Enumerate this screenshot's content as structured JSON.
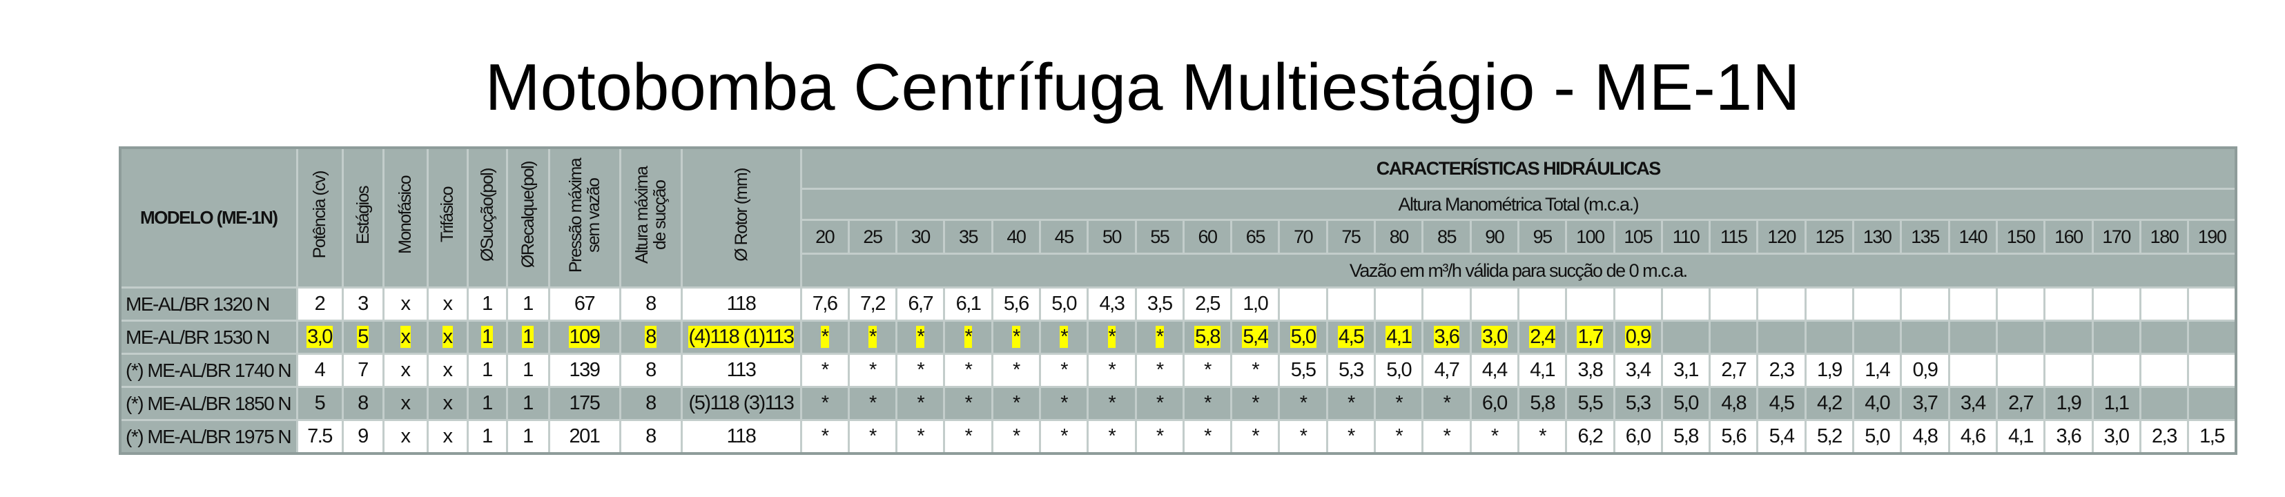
{
  "title": "Motobomba Centrífuga Multiestágio - ME-1N",
  "header": {
    "model": "MODELO (ME-1N)",
    "params": [
      "Potência (cv)",
      "Estágios",
      "Monofásico",
      "Trifásico",
      "ØSucção(pol)",
      "ØRecalque(pol)",
      "Pressão máxima sem vazão",
      "Altura máxima de sucção",
      "Ø Rotor (mm)"
    ],
    "section_title": "CARACTERÍSTICAS HIDRÁULICAS",
    "head_label": "Altura Manométrica Total (m.c.a.)",
    "flow_label": "Vazão em m³/h válida para sucção de 0 m.c.a.",
    "heads": [
      "20",
      "25",
      "30",
      "35",
      "40",
      "45",
      "50",
      "55",
      "60",
      "65",
      "70",
      "75",
      "80",
      "85",
      "90",
      "95",
      "100",
      "105",
      "110",
      "115",
      "120",
      "125",
      "130",
      "135",
      "140",
      "150",
      "160",
      "170",
      "180",
      "190"
    ]
  },
  "rows": [
    {
      "model": "ME-AL/BR 1320 N",
      "highlighted": false,
      "params": [
        "2",
        "3",
        "x",
        "x",
        "1",
        "1",
        "67",
        "8",
        "118"
      ],
      "flows": [
        "7,6",
        "7,2",
        "6,7",
        "6,1",
        "5,6",
        "5,0",
        "4,3",
        "3,5",
        "2,5",
        "1,0",
        "",
        "",
        "",
        "",
        "",
        "",
        "",
        "",
        "",
        "",
        "",
        "",
        "",
        "",
        "",
        "",
        "",
        "",
        "",
        ""
      ]
    },
    {
      "model": "ME-AL/BR 1530 N",
      "highlighted": true,
      "params": [
        "3,0",
        "5",
        "x",
        "x",
        "1",
        "1",
        "109",
        "8",
        "(4)118 (1)113"
      ],
      "flows": [
        "*",
        "*",
        "*",
        "*",
        "*",
        "*",
        "*",
        "*",
        "5,8",
        "5,4",
        "5,0",
        "4,5",
        "4,1",
        "3,6",
        "3,0",
        "2,4",
        "1,7",
        "0,9",
        "",
        "",
        "",
        "",
        "",
        "",
        "",
        "",
        "",
        "",
        "",
        ""
      ]
    },
    {
      "model": "(*) ME-AL/BR 1740 N",
      "highlighted": false,
      "params": [
        "4",
        "7",
        "x",
        "x",
        "1",
        "1",
        "139",
        "8",
        "113"
      ],
      "flows": [
        "*",
        "*",
        "*",
        "*",
        "*",
        "*",
        "*",
        "*",
        "*",
        "*",
        "5,5",
        "5,3",
        "5,0",
        "4,7",
        "4,4",
        "4,1",
        "3,8",
        "3,4",
        "3,1",
        "2,7",
        "2,3",
        "1,9",
        "1,4",
        "0,9",
        "",
        "",
        "",
        "",
        "",
        ""
      ]
    },
    {
      "model": "(*) ME-AL/BR 1850 N",
      "highlighted": false,
      "params": [
        "5",
        "8",
        "x",
        "x",
        "1",
        "1",
        "175",
        "8",
        "(5)118 (3)113"
      ],
      "flows": [
        "*",
        "*",
        "*",
        "*",
        "*",
        "*",
        "*",
        "*",
        "*",
        "*",
        "*",
        "*",
        "*",
        "*",
        "6,0",
        "5,8",
        "5,5",
        "5,3",
        "5,0",
        "4,8",
        "4,5",
        "4,2",
        "4,0",
        "3,7",
        "3,4",
        "2,7",
        "1,9",
        "1,1",
        "",
        ""
      ]
    },
    {
      "model": "(*) ME-AL/BR 1975 N",
      "highlighted": false,
      "params": [
        "7.5",
        "9",
        "x",
        "x",
        "1",
        "1",
        "201",
        "8",
        "118"
      ],
      "flows": [
        "*",
        "*",
        "*",
        "*",
        "*",
        "*",
        "*",
        "*",
        "*",
        "*",
        "*",
        "*",
        "*",
        "*",
        "*",
        "*",
        "6,2",
        "6,0",
        "5,8",
        "5,6",
        "5,4",
        "5,2",
        "5,0",
        "4,8",
        "4,6",
        "4,1",
        "3,6",
        "3,0",
        "2,3",
        "1,5"
      ]
    }
  ],
  "colors": {
    "header_gray": "#a2b1ae",
    "highlight": "#ffff00",
    "white": "#ffffff"
  }
}
